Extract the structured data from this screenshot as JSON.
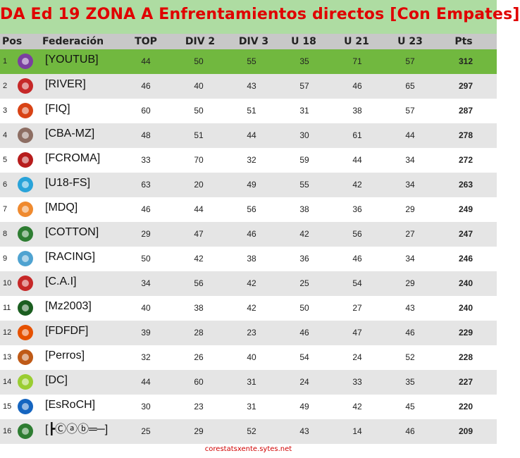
{
  "title": "DA Ed 19 ZONA  A Enfrentamientos directos [Con Empates]",
  "header": {
    "pos": "Pos",
    "federacion": "Federación",
    "top": "TOP",
    "div2": "DIV 2",
    "div3": "DIV 3",
    "u18": "U 18",
    "u21": "U 21",
    "u23": "U 23",
    "pts": "Pts"
  },
  "rows": [
    {
      "pos": "1",
      "fed": "[YOUTUB]",
      "top": "44",
      "div2": "50",
      "div3": "55",
      "u18": "35",
      "u21": "71",
      "u23": "57",
      "pts": "312",
      "logo_color": "#7b3fa0"
    },
    {
      "pos": "2",
      "fed": "[RIVER]",
      "top": "46",
      "div2": "40",
      "div3": "43",
      "u18": "57",
      "u21": "46",
      "u23": "65",
      "pts": "297",
      "logo_color": "#c62828"
    },
    {
      "pos": "3",
      "fed": "[FIQ]",
      "top": "60",
      "div2": "50",
      "div3": "51",
      "u18": "31",
      "u21": "38",
      "u23": "57",
      "pts": "287",
      "logo_color": "#d84315"
    },
    {
      "pos": "4",
      "fed": "[CBA-MZ]",
      "top": "48",
      "div2": "51",
      "div3": "44",
      "u18": "30",
      "u21": "61",
      "u23": "44",
      "pts": "278",
      "logo_color": "#8d6e63"
    },
    {
      "pos": "5",
      "fed": "[FCROMA]",
      "top": "33",
      "div2": "70",
      "div3": "32",
      "u18": "59",
      "u21": "44",
      "u23": "34",
      "pts": "272",
      "logo_color": "#b71c1c"
    },
    {
      "pos": "6",
      "fed": "[U18-FS]",
      "top": "63",
      "div2": "20",
      "div3": "49",
      "u18": "55",
      "u21": "42",
      "u23": "34",
      "pts": "263",
      "logo_color": "#29a3d9"
    },
    {
      "pos": "7",
      "fed": "[MDQ]",
      "top": "46",
      "div2": "44",
      "div3": "56",
      "u18": "38",
      "u21": "36",
      "u23": "29",
      "pts": "249",
      "logo_color": "#ef8a2f"
    },
    {
      "pos": "8",
      "fed": "[COTTON]",
      "top": "29",
      "div2": "47",
      "div3": "46",
      "u18": "42",
      "u21": "56",
      "u23": "27",
      "pts": "247",
      "logo_color": "#2e7d32"
    },
    {
      "pos": "9",
      "fed": "[RACING]",
      "top": "50",
      "div2": "42",
      "div3": "38",
      "u18": "36",
      "u21": "46",
      "u23": "34",
      "pts": "246",
      "logo_color": "#4fa3d1"
    },
    {
      "pos": "10",
      "fed": "[C.A.I]",
      "top": "34",
      "div2": "56",
      "div3": "42",
      "u18": "25",
      "u21": "54",
      "u23": "29",
      "pts": "240",
      "logo_color": "#c62828"
    },
    {
      "pos": "11",
      "fed": "[Mz2003]",
      "top": "40",
      "div2": "38",
      "div3": "42",
      "u18": "50",
      "u21": "27",
      "u23": "43",
      "pts": "240",
      "logo_color": "#1b5e20"
    },
    {
      "pos": "12",
      "fed": "[FDFDF]",
      "top": "39",
      "div2": "28",
      "div3": "23",
      "u18": "46",
      "u21": "47",
      "u23": "46",
      "pts": "229",
      "logo_color": "#e65100"
    },
    {
      "pos": "13",
      "fed": "[Perros]",
      "top": "32",
      "div2": "26",
      "div3": "40",
      "u18": "54",
      "u21": "24",
      "u23": "52",
      "pts": "228",
      "logo_color": "#bf5a17"
    },
    {
      "pos": "14",
      "fed": "[DC]",
      "top": "44",
      "div2": "60",
      "div3": "31",
      "u18": "24",
      "u21": "33",
      "u23": "35",
      "pts": "227",
      "logo_color": "#9acd32"
    },
    {
      "pos": "15",
      "fed": "[EsRoCH]",
      "top": "30",
      "div2": "23",
      "div3": "31",
      "u18": "49",
      "u21": "42",
      "u23": "45",
      "pts": "220",
      "logo_color": "#1565c0"
    },
    {
      "pos": "16",
      "fed": "[┣Ⓒⓐⓑ═─]",
      "top": "25",
      "div2": "29",
      "div3": "52",
      "u18": "43",
      "u21": "14",
      "u23": "46",
      "pts": "209",
      "logo_color": "#2e7d32"
    }
  ],
  "footer": "corestatsxente.sytes.net"
}
